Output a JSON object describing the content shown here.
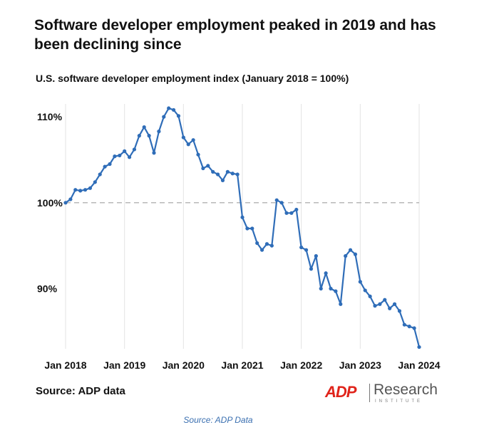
{
  "title": "Software developer employment peaked in 2019 and has been declining since",
  "subtitle": "U.S. software developer employment index (January 2018 = 100%)",
  "source": "Source: ADP data",
  "caption": "Source: ADP Data",
  "logo": {
    "mark": "ADP",
    "text": "Research",
    "subtext": "INSTITUTE"
  },
  "colors": {
    "line": "#2f6db8",
    "grid": "#e3e3e3",
    "reference": "#b8b8b8",
    "caption": "#3a6fb0",
    "brand": "#e0241b"
  },
  "chart_data": {
    "type": "line",
    "title": "Software developer employment peaked in 2019 and has been declining since",
    "subtitle": "U.S. software developer employment index (January 2018 = 100%)",
    "xlabel": "",
    "ylabel": "",
    "x_unit": "months since Jan 2018",
    "xlim": [
      0,
      72
    ],
    "ylim": [
      83,
      111.5
    ],
    "grid": "vertical",
    "reference_line": {
      "y": 100,
      "style": "dashed"
    },
    "x_ticks": [
      {
        "value": 0,
        "label": "Jan 2018"
      },
      {
        "value": 12,
        "label": "Jan 2019"
      },
      {
        "value": 24,
        "label": "Jan 2020"
      },
      {
        "value": 36,
        "label": "Jan 2021"
      },
      {
        "value": 48,
        "label": "Jan 2022"
      },
      {
        "value": 60,
        "label": "Jan 2023"
      },
      {
        "value": 72,
        "label": "Jan 2024"
      }
    ],
    "y_ticks": [
      {
        "value": 110,
        "label": "110%"
      },
      {
        "value": 100,
        "label": "100%"
      },
      {
        "value": 90,
        "label": "90%"
      }
    ],
    "series": [
      {
        "name": "Software developer employment index",
        "x": [
          0,
          1,
          2,
          3,
          4,
          5,
          6,
          7,
          8,
          9,
          10,
          11,
          12,
          13,
          14,
          15,
          16,
          17,
          18,
          19,
          20,
          21,
          22,
          23,
          24,
          25,
          26,
          27,
          28,
          29,
          30,
          31,
          32,
          33,
          34,
          35,
          36,
          37,
          38,
          39,
          40,
          41,
          42,
          43,
          44,
          45,
          46,
          47,
          48,
          49,
          50,
          51,
          52,
          53,
          54,
          55,
          56,
          57,
          58,
          59,
          60,
          61,
          62,
          63,
          64,
          65,
          66,
          67,
          68,
          69,
          70,
          71,
          72
        ],
        "y": [
          100.0,
          100.4,
          101.5,
          101.4,
          101.5,
          101.7,
          102.4,
          103.3,
          104.2,
          104.5,
          105.4,
          105.5,
          106.0,
          105.3,
          106.2,
          107.8,
          108.8,
          107.8,
          105.8,
          108.3,
          110.0,
          111.0,
          110.8,
          110.1,
          107.6,
          106.8,
          107.3,
          105.6,
          104.0,
          104.3,
          103.6,
          103.3,
          102.6,
          103.6,
          103.4,
          103.3,
          98.3,
          97.0,
          97.0,
          95.3,
          94.5,
          95.2,
          95.0,
          100.3,
          100.0,
          98.8,
          98.8,
          99.2,
          94.8,
          94.5,
          92.3,
          93.8,
          90.0,
          91.8,
          90.0,
          89.7,
          88.2,
          93.8,
          94.5,
          94.0,
          90.8,
          89.8,
          89.1,
          88.0,
          88.2,
          88.7,
          87.7,
          88.2,
          87.4,
          85.8,
          85.6,
          85.4,
          83.2
        ]
      }
    ]
  }
}
